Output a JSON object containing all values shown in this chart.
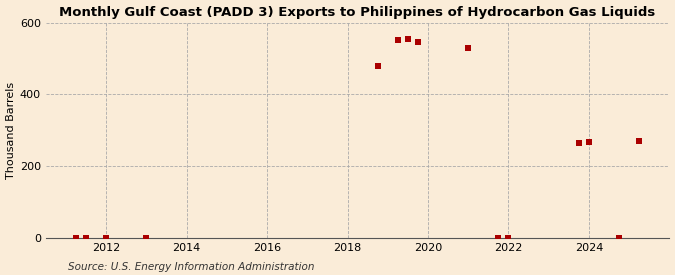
{
  "title": "Monthly Gulf Coast (PADD 3) Exports to Philippines of Hydrocarbon Gas Liquids",
  "ylabel": "Thousand Barrels",
  "source": "Source: U.S. Energy Information Administration",
  "background_color": "#faecd8",
  "plot_bg_color": "#faecd8",
  "marker_color": "#aa0000",
  "marker_size": 4,
  "marker_style": "s",
  "ylim": [
    0,
    600
  ],
  "yticks": [
    0,
    200,
    400,
    600
  ],
  "xlim": [
    2010.5,
    2026.0
  ],
  "xticks": [
    2012,
    2014,
    2016,
    2018,
    2020,
    2022,
    2024
  ],
  "data_points": [
    [
      2011.25,
      1
    ],
    [
      2011.5,
      1
    ],
    [
      2012.0,
      1
    ],
    [
      2013.0,
      1
    ],
    [
      2018.75,
      480
    ],
    [
      2019.25,
      550
    ],
    [
      2019.5,
      555
    ],
    [
      2019.75,
      545
    ],
    [
      2021.0,
      530
    ],
    [
      2021.75,
      1
    ],
    [
      2022.0,
      1
    ],
    [
      2023.75,
      265
    ],
    [
      2024.0,
      268
    ],
    [
      2024.75,
      1
    ],
    [
      2025.25,
      270
    ]
  ],
  "grid_color": "#aaaaaa",
  "grid_linestyle": "--",
  "grid_linewidth": 0.6,
  "title_fontsize": 9.5,
  "axis_fontsize": 8,
  "source_fontsize": 7.5
}
